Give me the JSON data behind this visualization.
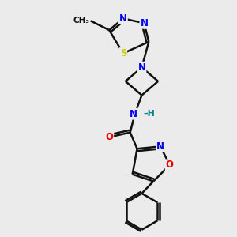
{
  "bg_color": "#ebebeb",
  "atom_colors": {
    "N": "#0000ee",
    "O": "#ee0000",
    "S": "#cccc00",
    "C": "#111111",
    "H": "#008888"
  },
  "bond_color": "#111111",
  "bond_width": 1.8,
  "font_size_atom": 8.5
}
